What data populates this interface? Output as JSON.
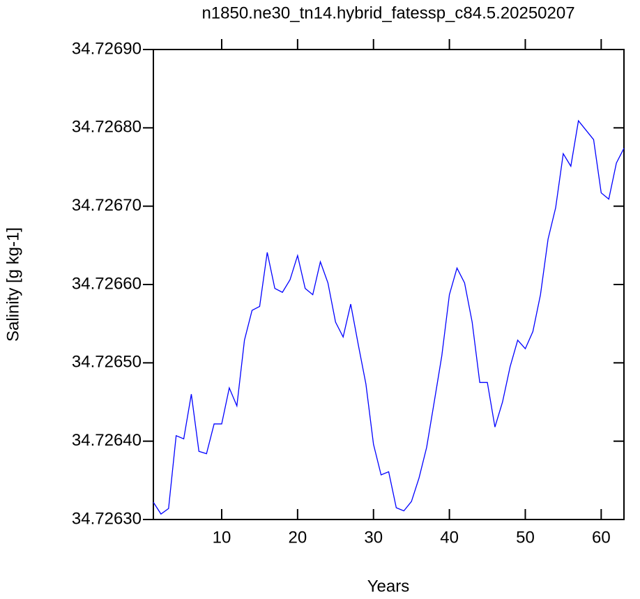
{
  "chart_data": {
    "type": "line",
    "title": "n1850.ne30_tn14.hybrid_fatessp_c84.5.20250207",
    "x_label": "Years",
    "y_label": "Salinity [g kg-1]",
    "x": [
      1,
      2,
      3,
      4,
      5,
      6,
      7,
      8,
      9,
      10,
      11,
      12,
      13,
      14,
      15,
      16,
      17,
      18,
      19,
      20,
      21,
      22,
      23,
      24,
      25,
      26,
      27,
      28,
      29,
      30,
      31,
      32,
      33,
      34,
      35,
      36,
      37,
      38,
      39,
      40,
      41,
      42,
      43,
      44,
      45,
      46,
      47,
      48,
      49,
      50,
      51,
      52,
      53,
      54,
      55,
      56,
      57,
      58,
      59,
      60,
      61,
      62,
      63
    ],
    "values": [
      34.726322,
      34.726307,
      34.726314,
      34.726407,
      34.726403,
      34.72646,
      34.726387,
      34.726384,
      34.726422,
      34.726422,
      34.726468,
      34.726445,
      34.726529,
      34.726567,
      34.726572,
      34.726641,
      34.726595,
      34.72659,
      34.726606,
      34.726637,
      34.726595,
      34.726587,
      34.726629,
      34.726602,
      34.726552,
      34.726533,
      34.726575,
      34.726523,
      34.726473,
      34.726396,
      34.726357,
      34.726361,
      34.726315,
      34.726311,
      34.726323,
      34.726353,
      34.726392,
      34.72645,
      34.726509,
      34.726587,
      34.726621,
      34.726602,
      34.726552,
      34.726475,
      34.726475,
      34.726418,
      34.72645,
      34.726495,
      34.726529,
      34.726518,
      34.72654,
      34.726587,
      34.726658,
      34.726698,
      34.726767,
      34.726751,
      34.726809,
      34.726797,
      34.726785,
      34.726717,
      34.726709,
      34.726755,
      34.726774
    ],
    "color": "#0000ff",
    "xlim": [
      1,
      63
    ],
    "xticks": [
      10,
      20,
      30,
      40,
      50,
      60
    ],
    "ylim": [
      34.7263,
      34.7269
    ],
    "yticks": [
      {
        "value": 34.7263,
        "label": "34.72630"
      },
      {
        "value": 34.7264,
        "label": "34.72640"
      },
      {
        "value": 34.7265,
        "label": "34.72650"
      },
      {
        "value": 34.7266,
        "label": "34.72660"
      },
      {
        "value": 34.7267,
        "label": "34.72670"
      },
      {
        "value": 34.7268,
        "label": "34.72680"
      },
      {
        "value": 34.7269,
        "label": "34.72690"
      }
    ]
  }
}
